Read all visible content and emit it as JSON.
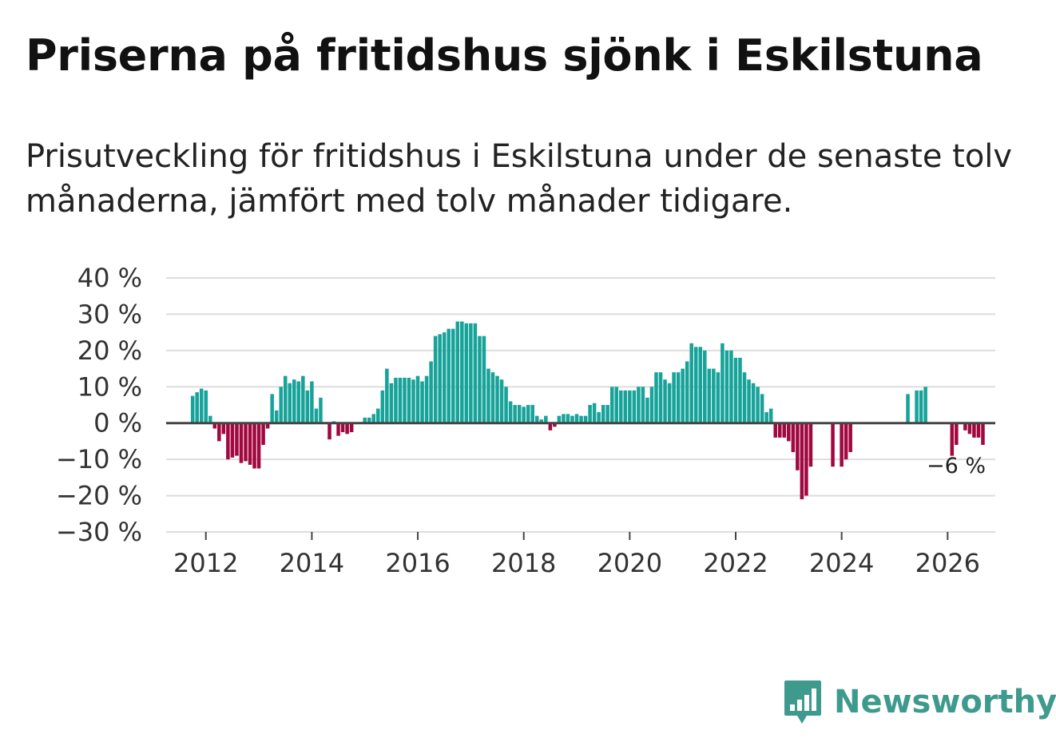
{
  "header": {
    "title": "Priserna på fritidshus sjönk i Eskilstuna",
    "subtitle": "Prisutveckling för fritidshus i Eskilstuna under de senaste tolv månaderna, jämfört med tolv månader tidigare."
  },
  "brand": {
    "name": "Newsworthy",
    "icon": "newsworthy-logo-icon",
    "color": "#3f9a8e"
  },
  "chart_data": {
    "type": "bar",
    "title": "Priserna på fritidshus sjönk i Eskilstuna",
    "xlabel": "",
    "ylabel": "",
    "x_start_year": 2011.75,
    "x_step": 0.08333,
    "x_range": [
      2011.25,
      2026.9
    ],
    "ylim": [
      -30,
      40
    ],
    "y_ticks": [
      40,
      30,
      20,
      10,
      0,
      -10,
      -20,
      -30
    ],
    "y_tick_labels": [
      "40 %",
      "30 %",
      "20 %",
      "10 %",
      "0 %",
      "−10 %",
      "−20 %",
      "−30 %"
    ],
    "x_ticks": [
      2012,
      2014,
      2016,
      2018,
      2020,
      2022,
      2024,
      2026
    ],
    "x_tick_labels": [
      "2012",
      "2014",
      "2016",
      "2018",
      "2020",
      "2022",
      "2024",
      "2026"
    ],
    "positive_color": "#17a39a",
    "negative_color": "#a0083f",
    "grid": true,
    "annotation": {
      "text": "−6 %",
      "value": -6,
      "x": 2026.2
    },
    "values": [
      7.5,
      8.5,
      9.5,
      9,
      2,
      -1.5,
      -5,
      -3,
      -10,
      -9.5,
      -9,
      -11,
      -10.5,
      -11.5,
      -12.5,
      -12.5,
      -6,
      -1.5,
      8,
      3.5,
      10,
      13,
      11,
      12,
      11.5,
      13,
      9,
      11.5,
      4,
      7,
      null,
      -4.5,
      0.5,
      -3.5,
      -2.5,
      -3,
      -2.5,
      null,
      null,
      1.5,
      1.5,
      2.5,
      4,
      9,
      15,
      11,
      12.5,
      12.5,
      12.5,
      12.5,
      12,
      13,
      11.5,
      13,
      17,
      24,
      24.5,
      25,
      26,
      26,
      28,
      28,
      27.5,
      27.5,
      27.5,
      24,
      24,
      15,
      14,
      13,
      12,
      10,
      6,
      5,
      5,
      4.5,
      5,
      5,
      2,
      1,
      2,
      -2,
      -1,
      2,
      2.5,
      2.5,
      2,
      2.5,
      2,
      2,
      5,
      5.5,
      3,
      5,
      5,
      10,
      10,
      9,
      9,
      9,
      9,
      10,
      10,
      7,
      10,
      14,
      14,
      12,
      11,
      14,
      14,
      15,
      17,
      22,
      21,
      21,
      20,
      15,
      15,
      14,
      22,
      20,
      20,
      18,
      18,
      14,
      12,
      11,
      10,
      8,
      3,
      4,
      -4,
      -4,
      -4,
      -5,
      -8,
      -13,
      -21,
      -20,
      -12,
      null,
      null,
      null,
      null,
      -12,
      null,
      -12,
      -10,
      -8,
      null,
      null,
      null,
      null,
      null,
      null,
      null,
      null,
      null,
      null,
      null,
      null,
      8,
      null,
      9,
      9,
      10,
      null,
      null,
      null,
      null,
      null,
      -9,
      -6,
      null,
      -2,
      -3,
      -4,
      -4,
      -6
    ]
  }
}
